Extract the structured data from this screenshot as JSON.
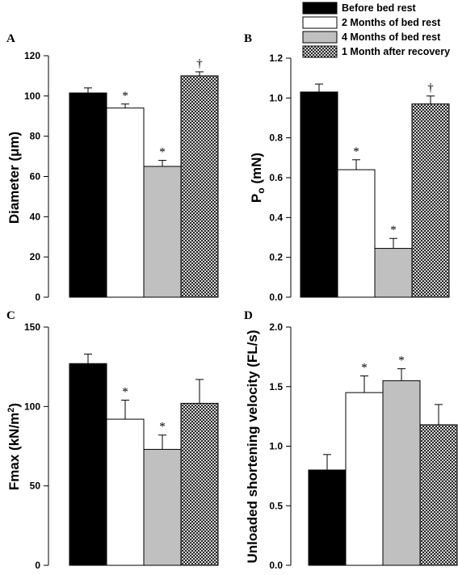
{
  "legend": [
    {
      "label": "Before bed rest",
      "fill": "#000000"
    },
    {
      "label": "2 Months of bed rest",
      "fill": "#ffffff"
    },
    {
      "label": "4 Months of bed rest",
      "fill": "#c0c0c0"
    },
    {
      "label": "1 Month after recovery",
      "fill": "pattern-crosshatch"
    }
  ],
  "colors": {
    "axis": "#000000",
    "bar_stroke": "#000000",
    "gray": "#c0c0c0"
  },
  "chart_data": [
    {
      "panel": "A",
      "type": "bar",
      "categories": [
        "Before bed rest",
        "2 Months of bed rest",
        "4 Months of bed rest",
        "1 Month after recovery"
      ],
      "values": [
        101.5,
        94,
        65,
        110
      ],
      "errors": [
        2.5,
        2,
        3,
        2
      ],
      "significance": [
        "",
        "*",
        "*",
        "†"
      ],
      "ylabel": "Diameter (μm)",
      "ylim": [
        0,
        120
      ],
      "yticks": [
        0,
        20,
        40,
        60,
        80,
        100,
        120
      ],
      "ytick_labels": [
        "0",
        "20",
        "40",
        "60",
        "80",
        "100",
        "120"
      ],
      "grid": false
    },
    {
      "panel": "B",
      "type": "bar",
      "categories": [
        "Before bed rest",
        "2 Months of bed rest",
        "4 Months of bed rest",
        "1 Month after recovery"
      ],
      "values": [
        1.03,
        0.64,
        0.245,
        0.97
      ],
      "errors": [
        0.04,
        0.05,
        0.05,
        0.04
      ],
      "significance": [
        "",
        "*",
        "*",
        "†"
      ],
      "ylabel_main": "P",
      "ylabel_sub": "o",
      "ylabel_rest": " (mN)",
      "ylim": [
        0,
        1.2
      ],
      "yticks": [
        0,
        0.2,
        0.4,
        0.6,
        0.8,
        1.0,
        1.2
      ],
      "ytick_labels": [
        "0.0",
        "0.2",
        "0.4",
        "0.6",
        "0.8",
        "1.0",
        "1.2"
      ],
      "grid": false
    },
    {
      "panel": "C",
      "type": "bar",
      "categories": [
        "Before bed rest",
        "2 Months of bed rest",
        "4 Months of bed rest",
        "1 Month after recovery"
      ],
      "values": [
        127,
        92,
        73,
        102
      ],
      "errors": [
        6,
        12,
        9,
        15
      ],
      "significance": [
        "",
        "*",
        "*",
        ""
      ],
      "ylabel_main": "Fmax (kN/m",
      "ylabel_sup": "2",
      "ylabel_rest": ")",
      "ylim": [
        0,
        150
      ],
      "yticks": [
        0,
        50,
        100,
        150
      ],
      "ytick_labels": [
        "0",
        "50",
        "100",
        "150"
      ],
      "grid": false
    },
    {
      "panel": "D",
      "type": "bar",
      "categories": [
        "Before bed rest",
        "2 Months of bed rest",
        "4 Months of bed rest",
        "1 Month after recovery"
      ],
      "values": [
        0.8,
        1.45,
        1.55,
        1.18
      ],
      "errors": [
        0.13,
        0.14,
        0.1,
        0.17
      ],
      "significance": [
        "",
        "*",
        "*",
        ""
      ],
      "ylabel": "Unloaded shortening velocity (FL/s)",
      "ylim": [
        0,
        2.0
      ],
      "yticks": [
        0,
        0.5,
        1.0,
        1.5,
        2.0
      ],
      "ytick_labels": [
        "0.0",
        "0.5",
        "1.0",
        "1.5",
        "2.0"
      ],
      "grid": false
    }
  ]
}
